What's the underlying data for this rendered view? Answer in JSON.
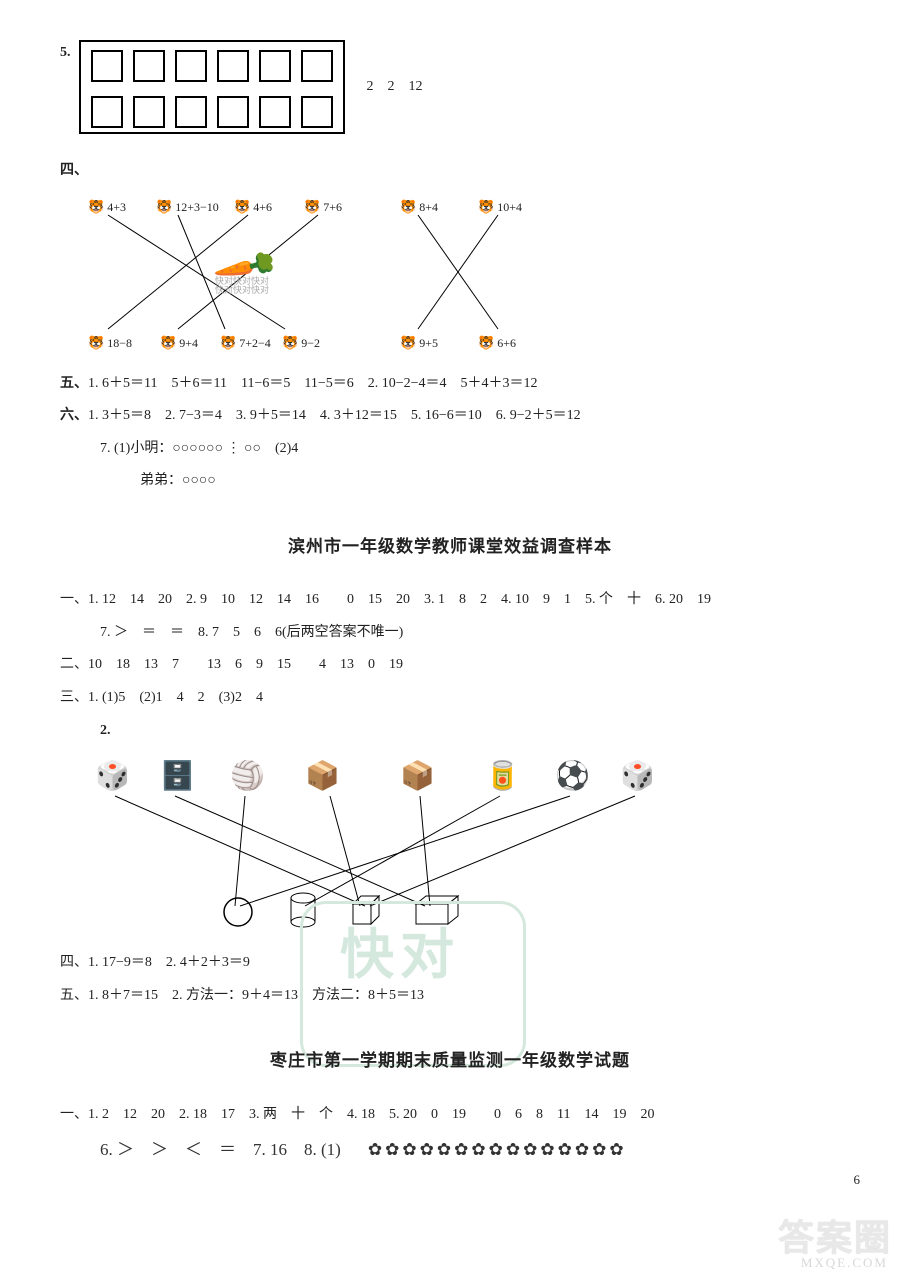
{
  "q5": {
    "label": "5.",
    "top_cols": 6,
    "bot_cols": 6,
    "right_text": "2　2　12"
  },
  "section4": {
    "label": "四、",
    "top": [
      "4+3",
      "12+3−10",
      "4+6",
      "7+6",
      "8+4",
      "10+4"
    ],
    "bot": [
      "18−8",
      "9+4",
      "7+2−4",
      "9−2",
      "9+5",
      "6+6"
    ],
    "wm": "快对快对快对\n快对快对快对"
  },
  "section5": {
    "label": "五、",
    "line": "1. 6＋5＝11　5＋6＝11　11−6＝5　11−5＝6　2. 10−2−4＝4　5＋4＋3＝12"
  },
  "section6": {
    "label": "六、",
    "line": "1. 3＋5＝8　2. 7−3＝4　3. 9＋5＝14　4. 3＋12＝15　5. 16−6＝10　6. 9−2＋5＝12",
    "q7a": "7. (1)小明：○○○○○○ ⋮ ○○　(2)4",
    "q7b": "弟弟：○○○○"
  },
  "title1": "滨州市一年级数学教师课堂效益调查样本",
  "bz": {
    "s1": "一、1. 12　14　20　2. 9　10　12　14　16　　0　15　20　3. 1　8　2　4. 10　9　1　5. 个　十　6. 20　19",
    "s1b": "7. ＞　＝　＝　8. 7　5　6　6(后两空答案不唯一)",
    "s2": "二、10　18　13　7　　13　6　9　15　　4　13　0　19",
    "s3": "三、1. (1)5　(2)1　4　2　(3)2　4",
    "s3_2label": "2.",
    "s4": "四、1. 17−9＝8　2. 4＋2＋3＝9",
    "s5": "五、1. 8＋7＝15　2. 方法一：9＋4＝13　方法二：8＋5＝13"
  },
  "title2": "枣庄市第一学期期末质量监测一年级数学试题",
  "zz": {
    "s1": "一、1. 2　12　20　2. 18　17　3. 两　十　个　4. 18　5. 20　0　19　　0　6　8　11　14　19　20",
    "s1b": "6. ＞　＞　＜　＝　7. 16　8. (1)"
  },
  "flower_count": 15,
  "page_number": "6",
  "footer_wm": "答案圈",
  "footer_wm2": "MXQE.COM",
  "kuaidui": "快对"
}
